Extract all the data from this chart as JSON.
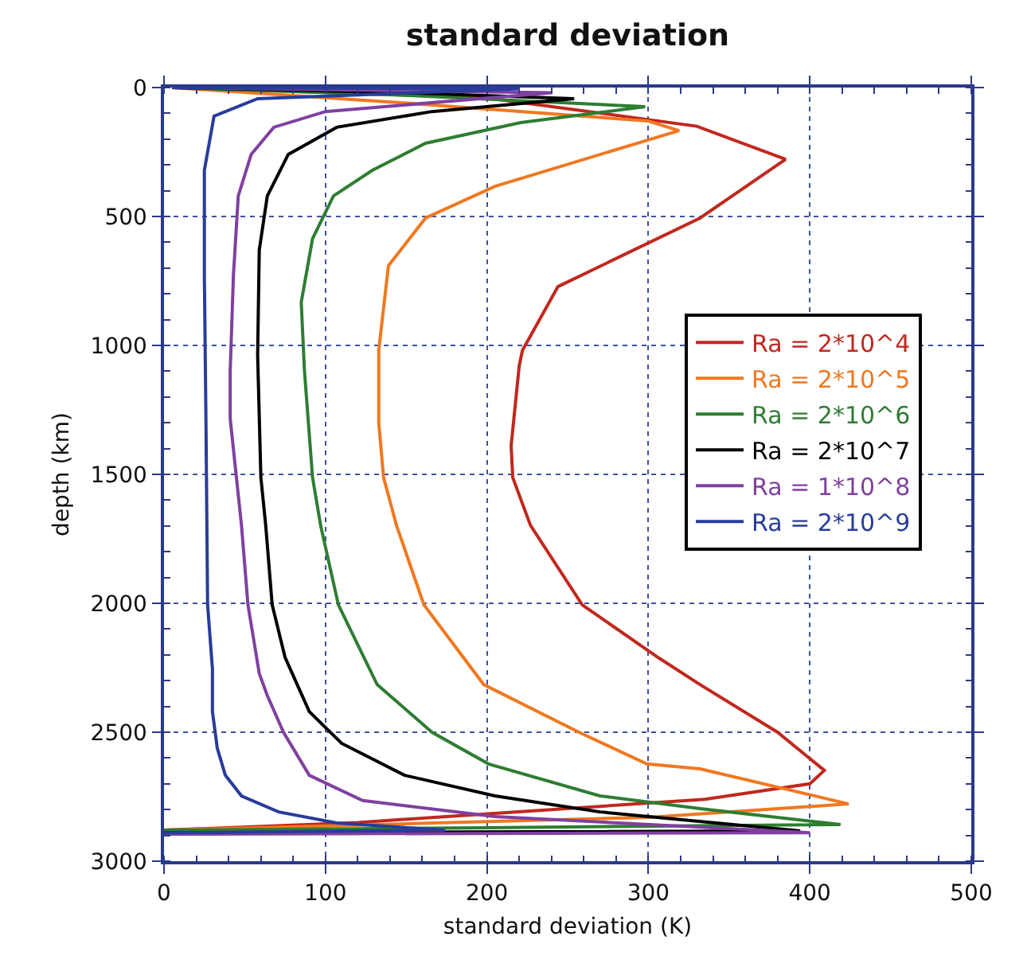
{
  "chart_data": {
    "type": "line",
    "title": "standard deviation",
    "xlabel": "standard deviation (K)",
    "ylabel": "depth (km)",
    "xlim": [
      0,
      500
    ],
    "xticks": [
      0,
      100,
      200,
      300,
      400,
      500
    ],
    "ylim": [
      3000,
      0
    ],
    "yticks": [
      0,
      500,
      1000,
      1500,
      2000,
      2500,
      3000
    ],
    "grid": true,
    "legend": "right",
    "marker": "none",
    "line_style": "solid",
    "series": [
      {
        "name": "Ra = 2*10^4",
        "color": "#c0281e",
        "x": [
          10,
          200,
          330,
          385,
          332,
          244,
          222,
          220,
          215,
          216,
          227,
          259,
          306,
          332,
          380,
          409,
          400,
          335,
          240,
          120,
          0
        ],
        "values": [
          0,
          40,
          150,
          278,
          506,
          772,
          1019,
          1080,
          1389,
          1512,
          1698,
          2006,
          2210,
          2315,
          2500,
          2648,
          2700,
          2760,
          2800,
          2850,
          2880
        ]
      },
      {
        "name": "Ra = 2*10^5",
        "color": "#f07820",
        "x": [
          5,
          150,
          300,
          319,
          205,
          162,
          139,
          133,
          133,
          136,
          144,
          161,
          198,
          257,
          299,
          332,
          424,
          300,
          120,
          0
        ],
        "values": [
          0,
          60,
          130,
          167,
          383,
          506,
          691,
          1019,
          1300,
          1512,
          1698,
          2006,
          2315,
          2500,
          2623,
          2642,
          2778,
          2830,
          2860,
          2880
        ]
      },
      {
        "name": "Ra = 2*10^6",
        "color": "#2e7d32",
        "x": [
          5,
          150,
          298,
          221,
          162,
          129,
          105,
          92,
          85,
          87,
          92,
          97,
          108,
          132,
          166,
          201,
          270,
          332,
          419,
          200,
          0
        ],
        "values": [
          0,
          30,
          74,
          136,
          216,
          321,
          420,
          586,
          833,
          1099,
          1512,
          1698,
          2006,
          2315,
          2500,
          2623,
          2747,
          2796,
          2858,
          2870,
          2880
        ]
      },
      {
        "name": "Ra = 2*10^7",
        "color": "#000000",
        "x": [
          5,
          150,
          254,
          166,
          107,
          77,
          64,
          59,
          58,
          60,
          63,
          67,
          75,
          90,
          110,
          149,
          205,
          270,
          394,
          0
        ],
        "values": [
          0,
          20,
          43,
          93,
          154,
          259,
          420,
          630,
          1037,
          1512,
          1698,
          2006,
          2210,
          2420,
          2543,
          2667,
          2747,
          2809,
          2883,
          2890
        ]
      },
      {
        "name": "Ra = 1*10^8",
        "color": "#8040a0",
        "x": [
          5,
          240,
          100,
          68,
          54,
          46,
          43,
          41,
          41,
          48,
          52,
          59,
          64,
          74,
          90,
          123,
          205,
          400,
          0
        ],
        "values": [
          0,
          20,
          93,
          154,
          259,
          420,
          728,
          1099,
          1284,
          1698,
          2006,
          2272,
          2358,
          2500,
          2667,
          2765,
          2827,
          2890,
          2895
        ]
      },
      {
        "name": "Ra = 2*10^9",
        "color": "#283c9c",
        "x": [
          5,
          220,
          58,
          31,
          25,
          25,
          26,
          27,
          30,
          30,
          33,
          38,
          48,
          71,
          107,
          174,
          0
        ],
        "values": [
          0,
          5,
          43,
          111,
          321,
          728,
          1300,
          2006,
          2253,
          2420,
          2562,
          2667,
          2747,
          2809,
          2852,
          2880,
          2890
        ]
      }
    ]
  }
}
